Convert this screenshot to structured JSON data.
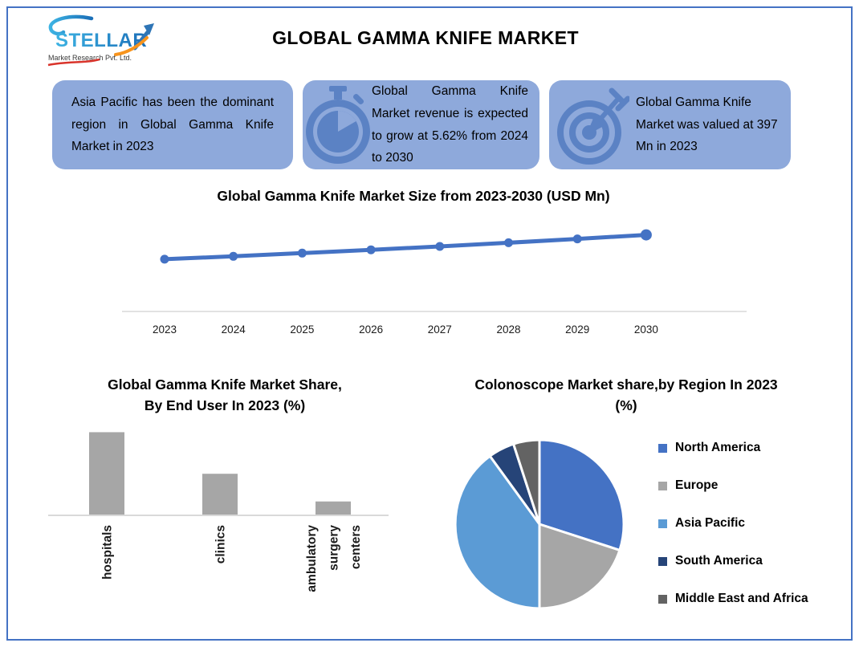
{
  "page": {
    "title": "GLOBAL GAMMA KNIFE MARKET"
  },
  "logo": {
    "name": "STELLAR",
    "tagline": "Market Research Pvt. Ltd."
  },
  "callouts": [
    {
      "icon": "none",
      "text": "Asia Pacific has been the dominant region in Global Gamma Knife Market in 2023"
    },
    {
      "icon": "stopwatch-icon",
      "text": "Global Gamma Knife Market revenue is expected to grow at 5.62% from 2024 to 2030"
    },
    {
      "icon": "target-icon",
      "text": "Global Gamma Knife Market was valued at 397 Mn in 2023"
    }
  ],
  "colors": {
    "border_blue": "#4472C4",
    "callout_bg": "#8EA9DB",
    "icon_blue": "#5B82C4",
    "axis_gray": "#D9D9D9",
    "text_black": "#000000"
  },
  "chart_data": [
    {
      "type": "line",
      "title": "Global Gamma Knife Market Size from 2023-2030 (USD Mn)",
      "x": [
        "2023",
        "2024",
        "2025",
        "2026",
        "2027",
        "2028",
        "2029",
        "2030"
      ],
      "values": [
        397,
        419,
        443,
        468,
        494,
        522,
        551,
        582
      ],
      "ylim": [
        0,
        750
      ],
      "xlabel": "",
      "ylabel": "",
      "grid": false,
      "line_color": "#4472C4",
      "legend_position": "none"
    },
    {
      "type": "bar",
      "title": "Global Gamma Knife Market Share, By End User In 2023 (%)",
      "categories": [
        "hospitals",
        "clinics",
        "ambulatory surgery centers"
      ],
      "values": [
        60,
        30,
        10
      ],
      "ylim": [
        0,
        66
      ],
      "xlabel": "",
      "ylabel": "",
      "grid": false,
      "bar_color": "#A6A6A6",
      "legend_position": "none"
    },
    {
      "type": "pie",
      "title": "Colonoscope Market share,by Region In 2023 (%)",
      "labels": [
        "North America",
        "Europe",
        "Asia Pacific",
        "South America",
        "Middle East and Africa"
      ],
      "values": [
        30,
        20,
        40,
        5,
        5
      ],
      "colors": [
        "#4472C4",
        "#A6A6A6",
        "#5B9BD5",
        "#264478",
        "#636363"
      ],
      "start_angle_deg": 0,
      "clockwise": true,
      "legend_position": "right"
    }
  ]
}
